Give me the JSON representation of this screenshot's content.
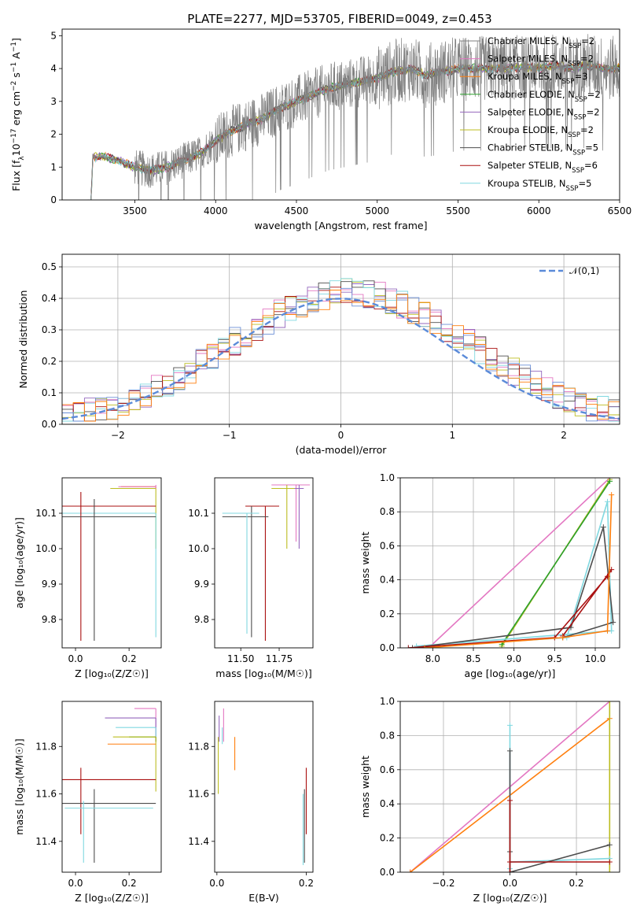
{
  "figure": {
    "title": "PLATE=2277, MJD=53705, FIBERID=0049, z=0.453"
  },
  "models": [
    {
      "name": "Chabrier MILES, N",
      "sub": "SSP",
      "suffix": "=2",
      "color": "#7f7f7f",
      "line": "dark"
    },
    {
      "name": "Salpeter MILES, N",
      "sub": "SSP",
      "suffix": "=2",
      "color": "#e377c2",
      "line": "dark"
    },
    {
      "name": "Kroupa MILES, N",
      "sub": "SSP",
      "suffix": "=3",
      "color": "#ff7f0e",
      "line": "dark"
    },
    {
      "name": "Chabrier ELODIE, N",
      "sub": "SSP",
      "suffix": "=2",
      "color": "#2ca02c",
      "line": "dark"
    },
    {
      "name": "Salpeter ELODIE, N",
      "sub": "SSP",
      "suffix": "=2",
      "color": "#9467bd",
      "line": "dark"
    },
    {
      "name": "Kroupa ELODIE, N",
      "sub": "SSP",
      "suffix": "=2",
      "color": "#bcbd22",
      "line": "dark"
    },
    {
      "name": "Chabrier STELIB, N",
      "sub": "SSP",
      "suffix": "=5",
      "color": "#4d4d4d",
      "line": "dark"
    },
    {
      "name": "Salpeter STELIB, N",
      "sub": "SSP",
      "suffix": "=6",
      "color": "#aa1111",
      "line": "dark"
    },
    {
      "name": "Kroupa STELIB, N",
      "sub": "SSP",
      "suffix": "=5",
      "color": "#80d8e0",
      "line": "dark"
    }
  ],
  "colors": {
    "spectrum": "#808080",
    "gaussian": "#5b8bd9",
    "grid": "#b0b0b0",
    "hist": [
      "#e377c2",
      "#9467bd",
      "#bcbd22",
      "#4d4d4d",
      "#aa1111",
      "#80d8e0",
      "#6b8fd6",
      "#ff7f0e"
    ]
  },
  "chart_data": [
    {
      "id": "spectrum",
      "type": "line",
      "xlabel": "wavelength [Angstrom, rest frame]",
      "ylabel_parts": [
        "Flux [f",
        "λ",
        "10",
        "−17",
        " erg cm",
        "−2",
        " s",
        "−1",
        " A",
        "−1",
        "]"
      ],
      "xlim": [
        3050,
        6500
      ],
      "ylim": [
        0,
        5.2
      ],
      "xticks": [
        3500,
        4000,
        4500,
        5000,
        5500,
        6000,
        6500
      ],
      "yticks": [
        0,
        1,
        2,
        3,
        4,
        5
      ],
      "data_start": 3210,
      "continuum": [
        [
          3210,
          0
        ],
        [
          3230,
          0.05
        ],
        [
          3240,
          1.3
        ],
        [
          3300,
          1.32
        ],
        [
          3400,
          1.2
        ],
        [
          3500,
          1.0
        ],
        [
          3600,
          0.9
        ],
        [
          3700,
          1.0
        ],
        [
          3800,
          1.2
        ],
        [
          3900,
          1.4
        ],
        [
          4000,
          1.8
        ],
        [
          4100,
          2.1
        ],
        [
          4200,
          2.3
        ],
        [
          4300,
          2.5
        ],
        [
          4400,
          2.8
        ],
        [
          4500,
          3.0
        ],
        [
          4600,
          3.2
        ],
        [
          4700,
          3.4
        ],
        [
          4800,
          3.5
        ],
        [
          4900,
          3.6
        ],
        [
          5000,
          3.7
        ],
        [
          5100,
          3.9
        ],
        [
          5200,
          4.0
        ],
        [
          5300,
          3.8
        ],
        [
          5400,
          3.9
        ],
        [
          5500,
          4.0
        ],
        [
          5600,
          4.0
        ],
        [
          5700,
          4.0
        ],
        [
          5800,
          4.0
        ],
        [
          5900,
          4.05
        ],
        [
          6000,
          4.0
        ],
        [
          6100,
          4.1
        ],
        [
          6200,
          4.0
        ],
        [
          6300,
          4.1
        ],
        [
          6400,
          4.0
        ],
        [
          6500,
          4.0
        ]
      ]
    },
    {
      "id": "residuals",
      "type": "histogram",
      "xlabel": "(data-model)/error",
      "ylabel": "Normed distribution",
      "xlim": [
        -2.5,
        2.5
      ],
      "ylim": [
        0,
        0.54
      ],
      "xticks": [
        -2,
        -1,
        0,
        1,
        2
      ],
      "yticks": [
        0.0,
        0.1,
        0.2,
        0.3,
        0.4,
        0.5
      ],
      "legend": {
        "label": "𝒩(0,1)",
        "position": "upper right"
      },
      "bin_width": 0.1
    },
    {
      "id": "z_age",
      "type": "scatter",
      "xlabel": "Z [log₁₀(Z/Z☉)]",
      "ylabel": "age  [log₁₀(age/yr)]",
      "xlim": [
        -0.05,
        0.32
      ],
      "ylim": [
        9.72,
        10.2
      ],
      "xticks": [
        0.0,
        0.2
      ],
      "yticks": [
        9.8,
        9.9,
        10.0,
        10.1
      ],
      "points": [
        {
          "m": 5,
          "x": 0.3,
          "y": 10.17,
          "xl": 0.13,
          "xh": 0.3,
          "yl": 10.0,
          "yh": 10.17
        },
        {
          "m": 2,
          "x": 0.3,
          "y": 10.175,
          "xl": 0.17,
          "xh": 0.3,
          "yl": 10.17,
          "yh": 10.175
        },
        {
          "m": 1,
          "x": 0.3,
          "y": 10.175,
          "xl": 0.16,
          "xh": 0.3,
          "yl": 10.17,
          "yh": 10.18
        },
        {
          "m": 8,
          "x": 0.3,
          "y": 10.1,
          "xl": -0.05,
          "xh": 0.3,
          "yl": 9.75,
          "yh": 10.1
        },
        {
          "m": 7,
          "x": 0.02,
          "y": 10.12,
          "xl": -0.05,
          "xh": 0.3,
          "yl": 9.74,
          "yh": 10.16
        },
        {
          "m": 6,
          "x": 0.07,
          "y": 10.09,
          "xl": -0.05,
          "xh": 0.3,
          "yl": 9.74,
          "yh": 10.14
        }
      ]
    },
    {
      "id": "mass_age",
      "type": "scatter",
      "xlabel": "mass [log₁₀(M/M☉)]",
      "ylabel": "",
      "xlim": [
        11.33,
        11.97
      ],
      "ylim": [
        9.72,
        10.2
      ],
      "xticks": [
        11.5,
        11.75
      ],
      "yticks": [
        9.8,
        9.9,
        10.0,
        10.1
      ],
      "points": [
        {
          "m": 1,
          "x": 11.86,
          "y": 10.18,
          "xl": 11.7,
          "xh": 11.95,
          "yl": 10.02,
          "yh": 10.18
        },
        {
          "m": 4,
          "x": 11.88,
          "y": 10.17,
          "xl": 11.71,
          "xh": 11.91,
          "yl": 10.0,
          "yh": 10.18
        },
        {
          "m": 5,
          "x": 11.8,
          "y": 10.17,
          "xl": 11.7,
          "xh": 11.85,
          "yl": 10.0,
          "yh": 10.18
        },
        {
          "m": 7,
          "x": 11.66,
          "y": 10.12,
          "xl": 11.53,
          "xh": 11.75,
          "yl": 9.74,
          "yh": 10.12
        },
        {
          "m": 6,
          "x": 11.57,
          "y": 10.09,
          "xl": 11.38,
          "xh": 11.68,
          "yl": 9.75,
          "yh": 10.12
        },
        {
          "m": 8,
          "x": 11.54,
          "y": 10.1,
          "xl": 11.38,
          "xh": 11.62,
          "yl": 9.76,
          "yh": 10.1
        }
      ]
    },
    {
      "id": "age_weight",
      "type": "line",
      "xlabel": "age  [log₁₀(age/yr)]",
      "ylabel": "mass weight",
      "xlim": [
        7.6,
        10.3
      ],
      "ylim": [
        0,
        1
      ],
      "xticks": [
        8.0,
        8.5,
        9.0,
        9.5,
        10.0
      ],
      "yticks": [
        0.0,
        0.2,
        0.4,
        0.6,
        0.8,
        1.0
      ],
      "series": [
        {
          "m": 1,
          "pts": [
            [
              7.95,
              0.0
            ],
            [
              10.18,
              1.0
            ]
          ]
        },
        {
          "m": 5,
          "pts": [
            [
              8.85,
              0.01
            ],
            [
              10.18,
              0.99
            ]
          ]
        },
        {
          "m": 3,
          "pts": [
            [
              8.85,
              0.02
            ],
            [
              10.18,
              0.98
            ]
          ]
        },
        {
          "m": 8,
          "pts": [
            [
              7.7,
              0.0
            ],
            [
              9.65,
              0.06
            ],
            [
              10.15,
              0.86
            ],
            [
              10.2,
              0.1
            ],
            [
              7.8,
              0.01
            ]
          ]
        },
        {
          "m": 6,
          "pts": [
            [
              7.75,
              0.0
            ],
            [
              9.7,
              0.12
            ],
            [
              10.1,
              0.71
            ],
            [
              10.22,
              0.15
            ],
            [
              9.6,
              0.06
            ]
          ]
        },
        {
          "m": 7,
          "pts": [
            [
              7.7,
              0.0
            ],
            [
              9.5,
              0.06
            ],
            [
              10.15,
              0.42
            ],
            [
              10.2,
              0.46
            ],
            [
              9.6,
              0.07
            ]
          ]
        },
        {
          "m": 2,
          "pts": [
            [
              7.9,
              0.0
            ],
            [
              9.6,
              0.06
            ],
            [
              10.15,
              0.1
            ],
            [
              10.2,
              0.9
            ]
          ]
        }
      ]
    },
    {
      "id": "z_mass",
      "type": "scatter",
      "xlabel": "Z [log₁₀(Z/Z☉)]",
      "ylabel": "mass [log₁₀(M/M☉)]",
      "xlim": [
        -0.05,
        0.32
      ],
      "ylim": [
        11.27,
        11.99
      ],
      "xticks": [
        0.0,
        0.2
      ],
      "yticks": [
        11.4,
        11.6,
        11.8
      ],
      "points": [
        {
          "m": 1,
          "x": 0.3,
          "y": 11.96,
          "xl": 0.22,
          "xh": 0.3,
          "yl": 11.82,
          "yh": 11.96
        },
        {
          "m": 4,
          "x": 0.3,
          "y": 11.92,
          "xl": 0.11,
          "xh": 0.3,
          "yl": 11.82,
          "yh": 11.92
        },
        {
          "m": 8,
          "x": 0.3,
          "y": 11.88,
          "xl": 0.15,
          "xh": 0.3,
          "yl": 11.84,
          "yh": 11.88
        },
        {
          "m": 3,
          "x": 0.3,
          "y": 11.84,
          "xl": 0.2,
          "xh": 0.3,
          "yl": 11.82,
          "yh": 11.84
        },
        {
          "m": 5,
          "x": 0.3,
          "y": 11.84,
          "xl": 0.14,
          "xh": 0.3,
          "yl": 11.61,
          "yh": 11.84
        },
        {
          "m": 2,
          "x": 0.3,
          "y": 11.81,
          "xl": 0.12,
          "xh": 0.3,
          "yl": 11.81,
          "yh": 11.81
        },
        {
          "m": 7,
          "x": 0.02,
          "y": 11.66,
          "xl": -0.05,
          "xh": 0.3,
          "yl": 11.43,
          "yh": 11.71
        },
        {
          "m": 6,
          "x": 0.07,
          "y": 11.56,
          "xl": -0.05,
          "xh": 0.3,
          "yl": 11.31,
          "yh": 11.62
        },
        {
          "m": 8,
          "x": 0.03,
          "y": 11.54,
          "xl": -0.04,
          "xh": 0.29,
          "yl": 11.31,
          "yh": 11.57
        }
      ]
    },
    {
      "id": "ebv_mass",
      "type": "scatter",
      "xlabel": "E(B-V)",
      "ylabel": "",
      "xlim": [
        -0.005,
        0.215
      ],
      "ylim": [
        11.27,
        11.99
      ],
      "xticks": [
        0.0,
        0.2
      ],
      "yticks": [
        11.4,
        11.6,
        11.8
      ],
      "points": [
        {
          "m": 1,
          "x": 0.015,
          "y": 11.9,
          "yl": 11.82,
          "yh": 11.96
        },
        {
          "m": 4,
          "x": 0.005,
          "y": 11.88,
          "yl": 11.82,
          "yh": 11.93
        },
        {
          "m": 8,
          "x": 0.012,
          "y": 11.85,
          "yl": 11.81,
          "yh": 11.88
        },
        {
          "m": 5,
          "x": 0.003,
          "y": 11.8,
          "yl": 11.6,
          "yh": 11.84
        },
        {
          "m": 2,
          "x": 0.04,
          "y": 11.77,
          "yl": 11.7,
          "yh": 11.84
        },
        {
          "m": 7,
          "x": 0.2,
          "y": 11.58,
          "yl": 11.43,
          "yh": 11.71
        },
        {
          "m": 6,
          "x": 0.196,
          "y": 11.5,
          "yl": 11.31,
          "yh": 11.62
        },
        {
          "m": 8,
          "x": 0.193,
          "y": 11.45,
          "yl": 11.3,
          "yh": 11.6
        }
      ]
    },
    {
      "id": "z_weight",
      "type": "line",
      "xlabel": "Z [log₁₀(Z/Z☉)]",
      "ylabel": "mass weight",
      "xlim": [
        -0.33,
        0.33
      ],
      "ylim": [
        0,
        1
      ],
      "xticks": [
        -0.2,
        0.0,
        0.2
      ],
      "yticks": [
        0.0,
        0.2,
        0.4,
        0.6,
        0.8,
        1.0
      ],
      "series": [
        {
          "m": 1,
          "pts": [
            [
              -0.3,
              0.0
            ],
            [
              0.3,
              1.0
            ]
          ]
        },
        {
          "m": 2,
          "pts": [
            [
              -0.3,
              0.0
            ],
            [
              0.3,
              0.9
            ]
          ]
        },
        {
          "m": 5,
          "pts": [
            [
              0.3,
              0.0
            ],
            [
              0.3,
              1.0
            ]
          ]
        },
        {
          "m": 8,
          "pts": [
            [
              0.0,
              0.02
            ],
            [
              0.0,
              0.86
            ],
            [
              0.0,
              0.06
            ],
            [
              0.3,
              0.08
            ]
          ]
        },
        {
          "m": 6,
          "pts": [
            [
              0.0,
              0.0
            ],
            [
              0.0,
              0.71
            ],
            [
              0.0,
              0.12
            ],
            [
              0.0,
              0.0
            ],
            [
              0.3,
              0.16
            ]
          ]
        },
        {
          "m": 7,
          "pts": [
            [
              0.0,
              0.0
            ],
            [
              0.0,
              0.42
            ],
            [
              0.0,
              0.06
            ],
            [
              0.3,
              0.06
            ]
          ]
        }
      ]
    }
  ]
}
